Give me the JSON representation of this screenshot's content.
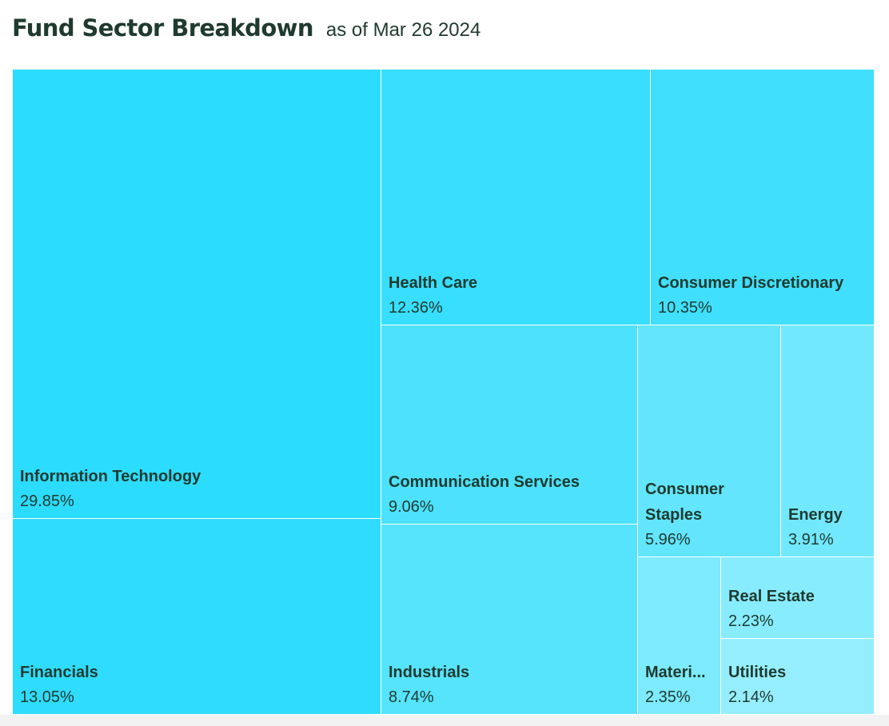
{
  "header": {
    "title": "Fund Sector Breakdown",
    "subtitle": "as of Mar 26 2024"
  },
  "chart_data": {
    "type": "treemap",
    "title": "Fund Sector Breakdown",
    "subtitle": "as of Mar 26 2024",
    "sectors": [
      {
        "name": "Information Technology",
        "label": "Information Technology",
        "value_label": "29.85%",
        "value": 29.85,
        "color": "#2cdcfe"
      },
      {
        "name": "Financials",
        "label": "Financials",
        "value_label": "13.05%",
        "value": 13.05,
        "color": "#2fdcfd"
      },
      {
        "name": "Health Care",
        "label": "Health Care",
        "value_label": "12.36%",
        "value": 12.36,
        "color": "#38defd"
      },
      {
        "name": "Consumer Discretionary",
        "label": "Consumer Discretionary",
        "value_label": "10.35%",
        "value": 10.35,
        "color": "#40dffd"
      },
      {
        "name": "Communication Services",
        "label": "Communication Services",
        "value_label": "9.06%",
        "value": 9.06,
        "color": "#4ce1fc"
      },
      {
        "name": "Industrials",
        "label": "Industrials",
        "value_label": "8.74%",
        "value": 8.74,
        "color": "#56e3fc"
      },
      {
        "name": "Consumer Staples",
        "label": "Consumer Staples",
        "value_label": "5.96%",
        "value": 5.96,
        "color": "#62e5fd"
      },
      {
        "name": "Energy",
        "label": "Energy",
        "value_label": "3.91%",
        "value": 3.91,
        "color": "#72e8fe"
      },
      {
        "name": "Materials",
        "label": "Materi...",
        "value_label": "2.35%",
        "value": 2.35,
        "color": "#7deafe"
      },
      {
        "name": "Real Estate",
        "label": "Real Estate",
        "value_label": "2.23%",
        "value": 2.23,
        "color": "#86ecfe"
      },
      {
        "name": "Utilities",
        "label": "Utilities",
        "value_label": "2.14%",
        "value": 2.14,
        "color": "#95eefe"
      }
    ]
  }
}
